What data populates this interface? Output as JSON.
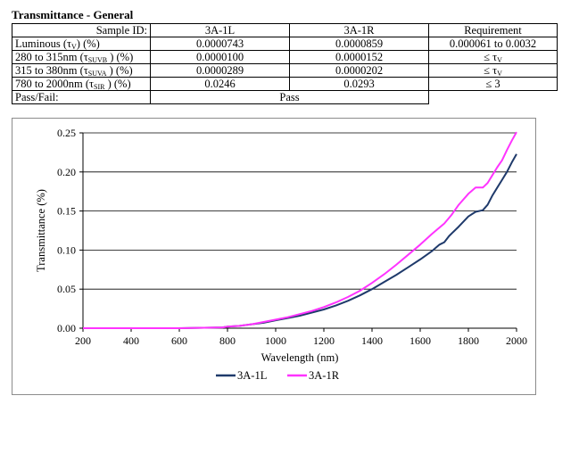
{
  "header": {
    "title": "Transmittance - General"
  },
  "table": {
    "headers": [
      "Sample ID:",
      "3A-1L",
      "3A-1R",
      "Requirement"
    ],
    "rows": [
      {
        "label_main": "Luminous (τ",
        "label_sub": "V",
        "label_tail": ") (%)",
        "a": "0.0000743",
        "b": "0.0000859",
        "req_main": "0.000061 to 0.0032",
        "req_sub": ""
      },
      {
        "label_main": "280 to 315nm (τ",
        "label_sub": "SUVB",
        "label_tail": " ) (%)",
        "a": "0.0000100",
        "b": "0.0000152",
        "req_main": "≤ τ",
        "req_sub": "V"
      },
      {
        "label_main": "315 to 380nm (τ",
        "label_sub": "SUVA",
        "label_tail": " ) (%)",
        "a": "0.0000289",
        "b": "0.0000202",
        "req_main": "≤ τ",
        "req_sub": "V"
      },
      {
        "label_main": "780 to 2000nm (τ",
        "label_sub": "SIR",
        "label_tail": " ) (%)",
        "a": "0.0246",
        "b": "0.0293",
        "req_main": "≤ 3",
        "req_sub": ""
      }
    ],
    "pass_label": "Pass/Fail:",
    "pass_value": "Pass"
  },
  "chart_data": {
    "type": "line",
    "xlabel": "Wavelength (nm)",
    "ylabel": "Transmittance (%)",
    "xlim": [
      200,
      2000
    ],
    "ylim": [
      0,
      0.25
    ],
    "xticks": [
      "200",
      "400",
      "600",
      "800",
      "1000",
      "1200",
      "1400",
      "1600",
      "1800",
      "2000"
    ],
    "yticks": [
      "0.00",
      "0.05",
      "0.10",
      "0.15",
      "0.20",
      "0.25"
    ],
    "grid": "horizontal",
    "legend_position": "bottom",
    "series": [
      {
        "name": "3A-1L",
        "color": "#1f3a6b",
        "points": [
          [
            200,
            0
          ],
          [
            600,
            0
          ],
          [
            780,
            0.001
          ],
          [
            800,
            0.002
          ],
          [
            850,
            0.003
          ],
          [
            900,
            0.005
          ],
          [
            950,
            0.007
          ],
          [
            1000,
            0.01
          ],
          [
            1050,
            0.013
          ],
          [
            1100,
            0.016
          ],
          [
            1150,
            0.02
          ],
          [
            1200,
            0.024
          ],
          [
            1250,
            0.029
          ],
          [
            1300,
            0.035
          ],
          [
            1350,
            0.042
          ],
          [
            1400,
            0.05
          ],
          [
            1450,
            0.059
          ],
          [
            1500,
            0.068
          ],
          [
            1550,
            0.078
          ],
          [
            1600,
            0.088
          ],
          [
            1650,
            0.099
          ],
          [
            1680,
            0.107
          ],
          [
            1700,
            0.11
          ],
          [
            1720,
            0.118
          ],
          [
            1760,
            0.13
          ],
          [
            1800,
            0.143
          ],
          [
            1830,
            0.149
          ],
          [
            1860,
            0.151
          ],
          [
            1880,
            0.158
          ],
          [
            1900,
            0.17
          ],
          [
            1920,
            0.18
          ],
          [
            1940,
            0.19
          ],
          [
            1960,
            0.2
          ],
          [
            1980,
            0.212
          ],
          [
            2000,
            0.223
          ]
        ]
      },
      {
        "name": "3A-1R",
        "color": "#ff33ff",
        "points": [
          [
            200,
            0
          ],
          [
            600,
            0
          ],
          [
            780,
            0.001
          ],
          [
            800,
            0.002
          ],
          [
            850,
            0.003
          ],
          [
            900,
            0.005
          ],
          [
            950,
            0.008
          ],
          [
            1000,
            0.011
          ],
          [
            1050,
            0.014
          ],
          [
            1100,
            0.018
          ],
          [
            1150,
            0.022
          ],
          [
            1200,
            0.027
          ],
          [
            1250,
            0.033
          ],
          [
            1300,
            0.04
          ],
          [
            1350,
            0.048
          ],
          [
            1400,
            0.058
          ],
          [
            1450,
            0.069
          ],
          [
            1500,
            0.081
          ],
          [
            1550,
            0.094
          ],
          [
            1600,
            0.107
          ],
          [
            1650,
            0.121
          ],
          [
            1700,
            0.134
          ],
          [
            1730,
            0.145
          ],
          [
            1760,
            0.158
          ],
          [
            1800,
            0.172
          ],
          [
            1830,
            0.18
          ],
          [
            1860,
            0.18
          ],
          [
            1880,
            0.186
          ],
          [
            1900,
            0.196
          ],
          [
            1920,
            0.206
          ],
          [
            1940,
            0.215
          ],
          [
            1960,
            0.228
          ],
          [
            1980,
            0.24
          ],
          [
            2000,
            0.251
          ]
        ]
      }
    ]
  }
}
